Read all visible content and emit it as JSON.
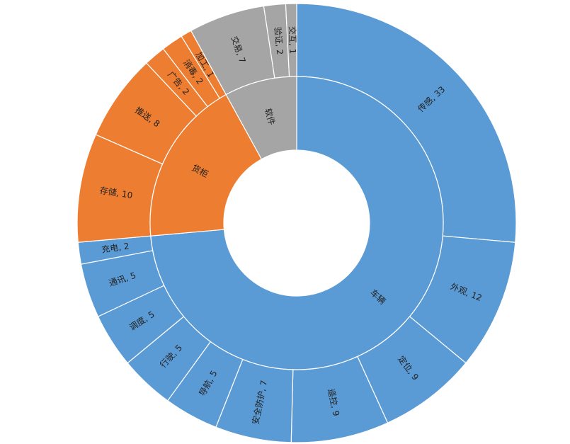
{
  "chart_data": {
    "type": "sunburst",
    "groups": [
      {
        "name": "车辆",
        "color": "#5b9bd5",
        "children": [
          {
            "label": "传感, 33",
            "value": 33
          },
          {
            "label": "外观, 12",
            "value": 12
          },
          {
            "label": "定位, 9",
            "value": 9
          },
          {
            "label": "遥控, 9",
            "value": 9
          },
          {
            "label": "安全防护, 7",
            "value": 7
          },
          {
            "label": "导航, 5",
            "value": 5
          },
          {
            "label": "行驶, 5",
            "value": 5
          },
          {
            "label": "调度, 5",
            "value": 5
          },
          {
            "label": "通讯, 5",
            "value": 5
          },
          {
            "label": "充电, 2",
            "value": 2
          }
        ]
      },
      {
        "name": "货柜",
        "color": "#ed7d31",
        "children": [
          {
            "label": "存储, 10",
            "value": 10
          },
          {
            "label": "推送, 8",
            "value": 8
          },
          {
            "label": "广告, 2",
            "value": 2
          },
          {
            "label": "消毒, 2",
            "value": 2
          },
          {
            "label": "加工, 1",
            "value": 1
          }
        ]
      },
      {
        "name": "软件",
        "color": "#a5a5a5",
        "children": [
          {
            "label": "交易, 7",
            "value": 7
          },
          {
            "label": "验证, 2",
            "value": 2
          },
          {
            "label": "交互, 1",
            "value": 1
          }
        ]
      }
    ]
  }
}
